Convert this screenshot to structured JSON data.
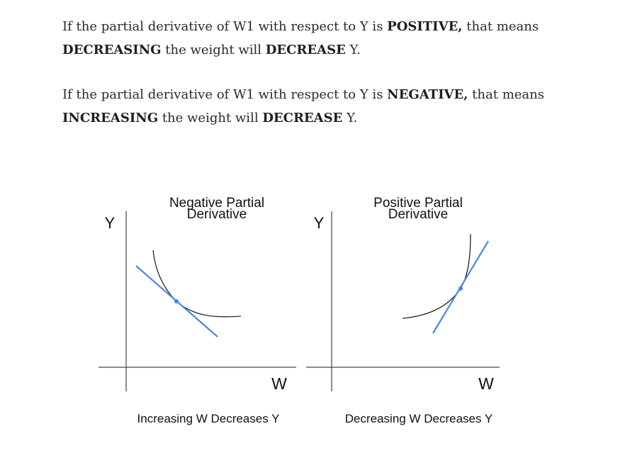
{
  "paragraph1": {
    "t1": "If the partial derivative of W1 with respect to Y is ",
    "b1": "POSITIVE,",
    "t2": " that means",
    "b2": "DECREASING",
    "t3": " the weight will ",
    "b3": "DECREASE",
    "t4": " Y."
  },
  "paragraph2": {
    "t1": "If the partial derivative of W1 with respect to Y is ",
    "b1": "NEGATIVE,",
    "t2": " that means",
    "b2": "INCREASING",
    "t3": " the weight will ",
    "b3": "DECREASE",
    "t4": " Y."
  },
  "left_panel": {
    "title_line1": "Negative Partial",
    "title_line2": "Derivative",
    "y_label": "Y",
    "x_label": "W",
    "caption": "Increasing W Decreases Y"
  },
  "right_panel": {
    "title_line1": "Positive Partial",
    "title_line2": "Derivative",
    "y_label": "Y",
    "x_label": "W",
    "caption": "Decreasing W Decreases Y"
  },
  "colors": {
    "tangent": "#4a86e8",
    "curve": "#000000",
    "axis": "#444444"
  }
}
